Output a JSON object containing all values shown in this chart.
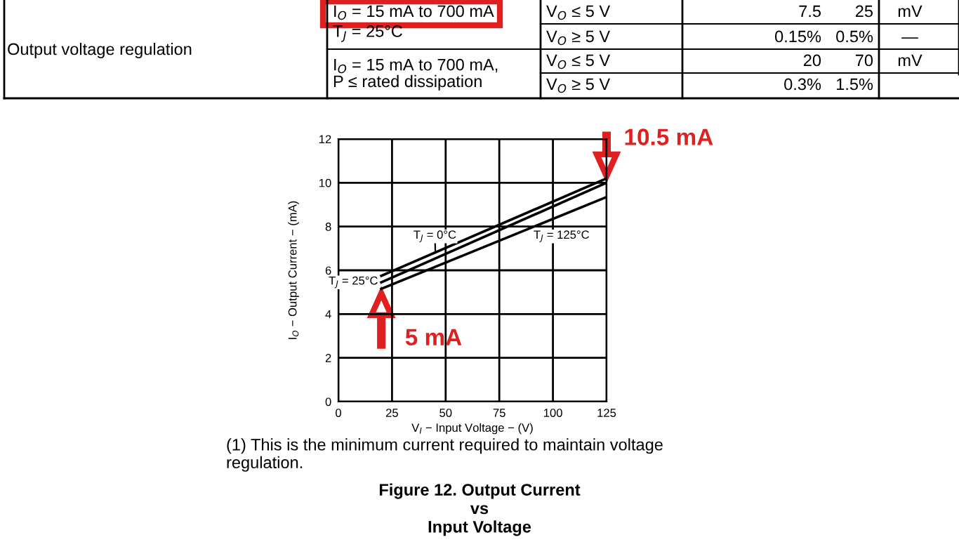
{
  "chart_data": [
    {
      "type": "other",
      "annotations": [
        "Output voltage regulation",
        "I$_{O}$ = 15 mA to 700 mA",
        "T$_{J}$ = 25°C",
        "V$_{O}$ ≤ 5 V",
        "7.5",
        "25",
        "mV",
        "V$_{O}$ ≥ 5 V",
        "0.15%",
        "0.5%",
        "—",
        "I$_{O}$ = 15 mA to 700 mA,\nP ≤ rated dissipation",
        "V$_{O}$ ≤ 5 V",
        "20",
        "70",
        "mV",
        "V$_{O}$ ≥ 5 V",
        "0.3%",
        "1.5%"
      ]
    },
    {
      "type": "line",
      "title": "Figure 12. Output Current\nvs\nInput Voltage",
      "xlabel": "V$_{I}$ − Input Voltage − (V)",
      "ylabel": "I$_{O}$ − Output Current − (mA)",
      "xlim": [
        0,
        125
      ],
      "xticks": [
        0,
        25,
        50,
        75,
        100,
        125
      ],
      "ylim": [
        0,
        12
      ],
      "yticks": [
        0,
        2,
        4,
        6,
        8,
        10,
        12
      ],
      "grid": true,
      "legend": false,
      "marker": "none",
      "line_style": "solid",
      "x": [
        20,
        125
      ],
      "series": [
        {
          "name": "T$_{J}$ = 0°C",
          "color": "#000000",
          "values": [
            5.75,
            10.2
          ]
        },
        {
          "name": "T$_{J}$ = 25°C",
          "color": "#000000",
          "values": [
            5.45,
            10.0
          ]
        },
        {
          "name": "T$_{J}$ = 125°C",
          "color": "#000000",
          "values": [
            5.15,
            9.35
          ]
        }
      ],
      "annotations": [
        {
          "text": "10.5 mA",
          "x": 125,
          "y": 10.2
        },
        {
          "text": "5 mA",
          "x": 20,
          "y": 5.15
        },
        "(1) This is the minimum current required to maintain voltage\nregulation."
      ]
    }
  ]
}
